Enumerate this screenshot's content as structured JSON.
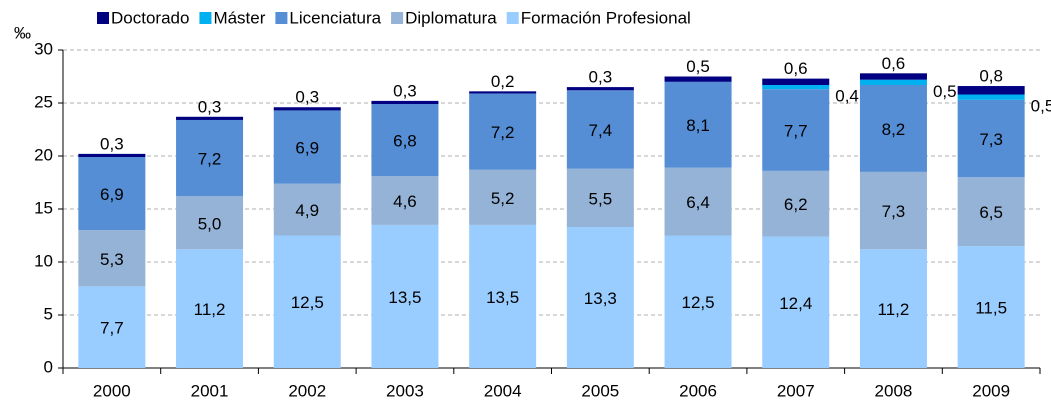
{
  "chart_data": {
    "type": "bar",
    "stacked": true,
    "y_label": "‰",
    "categories": [
      "2000",
      "2001",
      "2002",
      "2003",
      "2004",
      "2005",
      "2006",
      "2007",
      "2008",
      "2009"
    ],
    "series": [
      {
        "name": "Formación Profesional",
        "color": "#99ccff",
        "values": [
          7.7,
          11.2,
          12.5,
          13.5,
          13.5,
          13.3,
          12.5,
          12.4,
          11.2,
          11.5
        ],
        "value_labels": [
          "7,7",
          "11,2",
          "12,5",
          "13,5",
          "13,5",
          "13,3",
          "12,5",
          "12,4",
          "11,2",
          "11,5"
        ]
      },
      {
        "name": "Diplomatura",
        "color": "#95b3d7",
        "values": [
          5.3,
          5.0,
          4.9,
          4.6,
          5.2,
          5.5,
          6.4,
          6.2,
          7.3,
          6.5
        ],
        "value_labels": [
          "5,3",
          "5,0",
          "4,9",
          "4,6",
          "5,2",
          "5,5",
          "6,4",
          "6,2",
          "7,3",
          "6,5"
        ]
      },
      {
        "name": "Licenciatura",
        "color": "#558ed5",
        "values": [
          6.9,
          7.2,
          6.9,
          6.8,
          7.2,
          7.4,
          8.1,
          7.7,
          8.2,
          7.3
        ],
        "value_labels": [
          "6,9",
          "7,2",
          "6,9",
          "6,8",
          "7,2",
          "7,4",
          "8,1",
          "7,7",
          "8,2",
          "7,3"
        ]
      },
      {
        "name": "Máster",
        "color": "#00b0f0",
        "values": [
          null,
          null,
          null,
          null,
          null,
          null,
          null,
          0.4,
          0.5,
          0.5
        ],
        "value_labels": [
          null,
          null,
          null,
          null,
          null,
          null,
          null,
          "0,4",
          "0,5",
          "0,5"
        ]
      },
      {
        "name": "Doctorado",
        "color": "#000080",
        "values": [
          0.3,
          0.3,
          0.3,
          0.3,
          0.2,
          0.3,
          0.5,
          0.6,
          0.6,
          0.8
        ],
        "value_labels": [
          "0,3",
          "0,3",
          "0,3",
          "0,3",
          "0,2",
          "0,3",
          "0,5",
          "0,6",
          "0,6",
          "0,8"
        ]
      }
    ],
    "legend_order": [
      4,
      3,
      2,
      1,
      0
    ],
    "ylim": [
      0,
      30
    ],
    "yticks": [
      0,
      5,
      10,
      15,
      20,
      25,
      30
    ],
    "grid": true,
    "legend": "top"
  }
}
